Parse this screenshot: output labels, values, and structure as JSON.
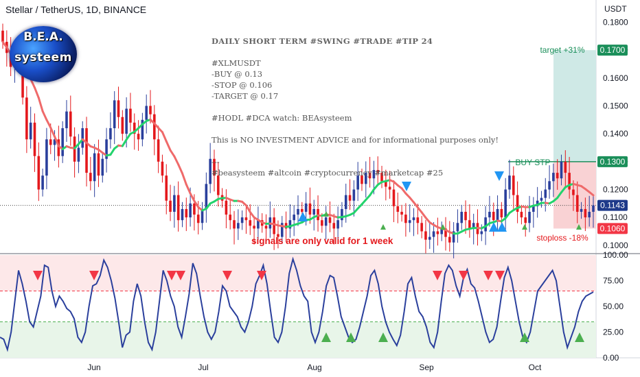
{
  "header": {
    "title": "Stellar / TetherUS, 1D, BINANCE",
    "currency": "USDT"
  },
  "logo": {
    "line1": "B.E.A.",
    "line2": "systeem"
  },
  "note": {
    "heading": "DAILY SHORT TERM #SWING #TRADE #TIP 24",
    "lines": [
      "#XLMUSDT",
      "-BUY @ 0.13",
      "-STOP @ 0.106",
      "-TARGET @ 0.17",
      "",
      "#HODL #DCA watch: BEAsysteem",
      "",
      "This is NO INVESTMENT ADVICE and for informational purposes only!",
      "",
      "---",
      "#beasysteem #altcoin #cryptocurrency #marketcap #25"
    ]
  },
  "warning": "signals are only valid for 1 week",
  "colors": {
    "up": "#2a3f9c",
    "down": "#e4181c",
    "ma_down": "#ef6a6a",
    "ma_up": "#22d36c",
    "target_zone": "#cfe9e6",
    "stop_zone": "#f9d2d4",
    "osc_line": "#2a3f9c",
    "buy_signal": "#2196f3",
    "sell_signal": "#f23645",
    "osc_buy": "#4caf50"
  },
  "chart_data": [
    {
      "type": "candlestick",
      "title": "Stellar / TetherUS, 1D, BINANCE",
      "ylabel": "USDT",
      "ylim": [
        0.097,
        0.188
      ],
      "y_ticks": [
        "0.1800",
        "0.1700",
        "0.1600",
        "0.1500",
        "0.1400",
        "0.1300",
        "0.1200",
        "0.1100",
        "0.1000"
      ],
      "x_ticks": [
        "Jun",
        "Jul",
        "Aug",
        "Sep",
        "Oct"
      ],
      "close": [
        0.173,
        0.169,
        0.164,
        0.17,
        0.166,
        0.153,
        0.138,
        0.144,
        0.132,
        0.12,
        0.125,
        0.138,
        0.136,
        0.138,
        0.132,
        0.142,
        0.148,
        0.139,
        0.13,
        0.135,
        0.142,
        0.126,
        0.123,
        0.133,
        0.125,
        0.131,
        0.138,
        0.142,
        0.152,
        0.146,
        0.14,
        0.149,
        0.144,
        0.14,
        0.138,
        0.145,
        0.15,
        0.147,
        0.138,
        0.13,
        0.125,
        0.116,
        0.112,
        0.118,
        0.109,
        0.113,
        0.11,
        0.115,
        0.111,
        0.108,
        0.113,
        0.122,
        0.131,
        0.125,
        0.118,
        0.116,
        0.111,
        0.109,
        0.106,
        0.108,
        0.11,
        0.109,
        0.107,
        0.106,
        0.109,
        0.107,
        0.106,
        0.11,
        0.104,
        0.103,
        0.108,
        0.106,
        0.109,
        0.111,
        0.113,
        0.112,
        0.115,
        0.111,
        0.113,
        0.109,
        0.107,
        0.11,
        0.108,
        0.106,
        0.109,
        0.113,
        0.118,
        0.116,
        0.12,
        0.125,
        0.122,
        0.126,
        0.124,
        0.127,
        0.126,
        0.123,
        0.121,
        0.12,
        0.114,
        0.112,
        0.111,
        0.108,
        0.109,
        0.11,
        0.108,
        0.105,
        0.102,
        0.103,
        0.105,
        0.104,
        0.106,
        0.103,
        0.101,
        0.105,
        0.108,
        0.112,
        0.109,
        0.106,
        0.108,
        0.104,
        0.105,
        0.11,
        0.112,
        0.109,
        0.113,
        0.11,
        0.12,
        0.125,
        0.118,
        0.112,
        0.11,
        0.108,
        0.112,
        0.114,
        0.116,
        0.117,
        0.12,
        0.123,
        0.126,
        0.124,
        0.13,
        0.126,
        0.12,
        0.118,
        0.112,
        0.113,
        0.11,
        0.112,
        0.1143
      ],
      "annotations": [
        "target +31%",
        "BUY STP",
        "stoploss -18%"
      ],
      "price_labels": [
        "0.1700",
        "0.1300",
        "0.1143",
        "0.1060"
      ],
      "levels": {
        "target": 0.17,
        "entry": 0.13,
        "stop": 0.106,
        "last": 0.1143
      }
    },
    {
      "type": "line",
      "title": "",
      "ylim": [
        0,
        100
      ],
      "y_ticks": [
        "100.00",
        "75.00",
        "50.00",
        "25.00",
        "0.00"
      ],
      "bands": {
        "overbought": 65,
        "oversold": 35
      },
      "values": [
        20,
        18,
        8,
        25,
        55,
        85,
        72,
        55,
        35,
        30,
        45,
        60,
        90,
        88,
        65,
        50,
        60,
        55,
        48,
        45,
        38,
        20,
        15,
        25,
        50,
        70,
        72,
        80,
        95,
        88,
        75,
        58,
        35,
        10,
        22,
        25,
        55,
        72,
        60,
        35,
        15,
        8,
        25,
        55,
        85,
        75,
        60,
        50,
        30,
        20,
        40,
        62,
        92,
        82,
        60,
        40,
        25,
        18,
        25,
        45,
        70,
        65,
        50,
        45,
        40,
        30,
        25,
        35,
        50,
        72,
        80,
        90,
        72,
        45,
        20,
        15,
        25,
        50,
        82,
        96,
        85,
        70,
        60,
        55,
        25,
        15,
        25,
        45,
        70,
        80,
        78,
        60,
        40,
        30,
        20,
        15,
        18,
        30,
        45,
        60,
        80,
        85,
        72,
        50,
        35,
        25,
        18,
        12,
        22,
        45,
        72,
        78,
        60,
        45,
        40,
        30,
        15,
        10,
        25,
        55,
        82,
        90,
        85,
        70,
        60,
        78,
        86,
        72,
        68,
        55,
        40,
        25,
        15,
        18,
        30,
        55,
        78,
        88,
        75,
        55,
        35,
        20,
        15,
        25,
        45,
        65,
        70,
        75,
        80,
        85,
        75,
        50,
        25,
        10,
        20,
        30,
        45,
        55,
        60,
        62,
        64
      ]
    }
  ]
}
